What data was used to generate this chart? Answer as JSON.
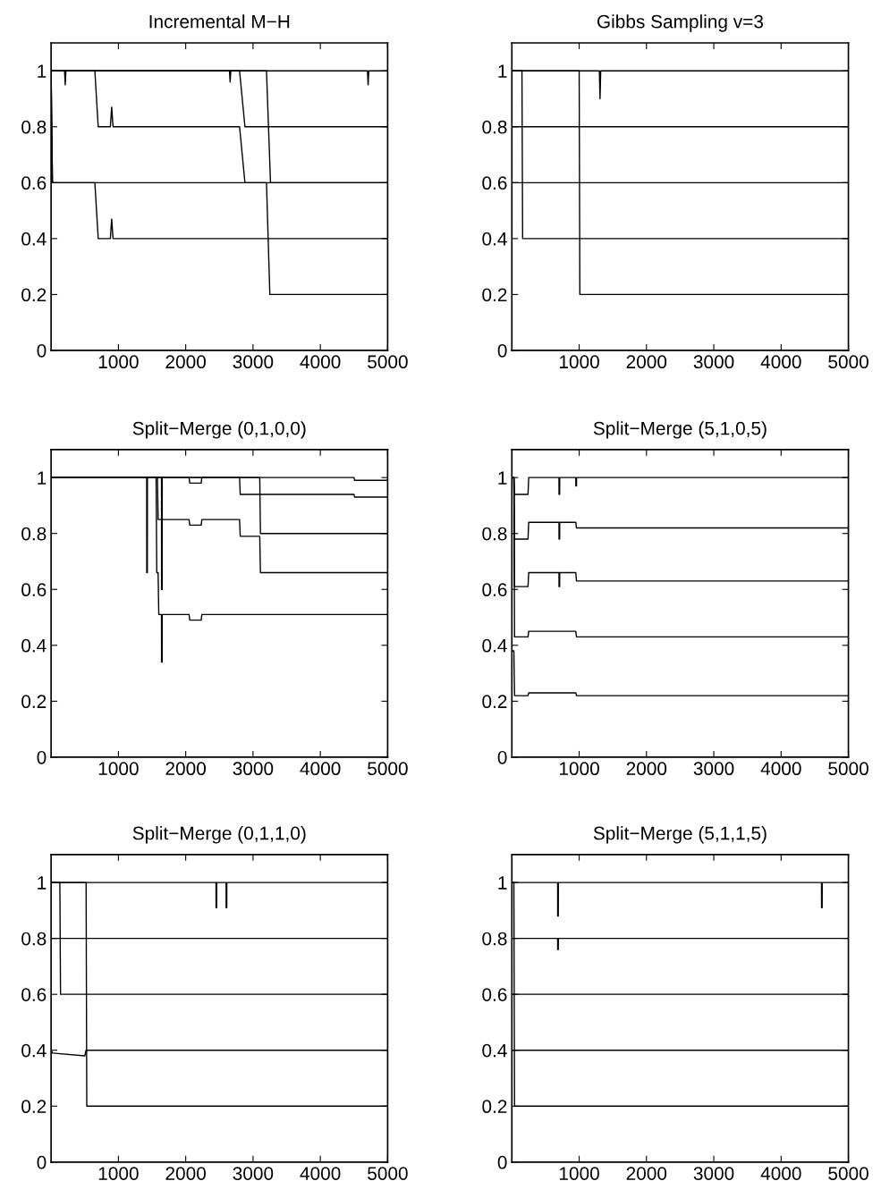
{
  "chart_data": [
    {
      "type": "line",
      "title": "Incremental M−H",
      "xlim": [
        0,
        5000
      ],
      "ylim": [
        0,
        1.1
      ],
      "xticks": [
        1000,
        2000,
        3000,
        4000,
        5000
      ],
      "yticks": [
        0,
        0.2,
        0.4,
        0.6,
        0.8,
        1
      ],
      "series": [
        {
          "color": "#000000",
          "x": [
            0,
            200,
            210,
            220,
            2650,
            2660,
            2670,
            4700,
            4710,
            4720,
            5000
          ],
          "values": [
            1,
            1,
            0.95,
            1,
            1,
            0.96,
            1,
            1,
            0.95,
            1,
            1
          ]
        },
        {
          "color": "#000000",
          "x": [
            0,
            650,
            700,
            880,
            900,
            920,
            2800,
            2880,
            5000
          ],
          "values": [
            1,
            1,
            0.8,
            0.8,
            0.87,
            0.8,
            0.8,
            0.6,
            0.6
          ]
        },
        {
          "color": "#000000",
          "x": [
            0,
            2800,
            2880,
            5000
          ],
          "values": [
            1,
            1,
            0.8,
            0.8
          ]
        },
        {
          "color": "#000000",
          "x": [
            0,
            20,
            650,
            700,
            880,
            900,
            920,
            5000
          ],
          "values": [
            1,
            0.6,
            0.6,
            0.4,
            0.4,
            0.47,
            0.4,
            0.4
          ]
        },
        {
          "color": "#000000",
          "x": [
            0,
            20,
            3200,
            3250,
            5000
          ],
          "values": [
            1,
            0.6,
            0.6,
            0.2,
            0.2
          ]
        },
        {
          "color": "#000000",
          "x": [
            0,
            3200,
            3260,
            5000
          ],
          "values": [
            1,
            1,
            0.6,
            0.6
          ]
        }
      ]
    },
    {
      "type": "line",
      "title": "Gibbs Sampling v=3",
      "xlim": [
        0,
        5000
      ],
      "ylim": [
        0,
        1.1
      ],
      "xticks": [
        1000,
        2000,
        3000,
        4000,
        5000
      ],
      "yticks": [
        0,
        0.2,
        0.4,
        0.6,
        0.8,
        1
      ],
      "series": [
        {
          "color": "#000000",
          "x": [
            0,
            1300,
            1310,
            1320,
            5000
          ],
          "values": [
            1,
            1,
            0.9,
            1,
            1
          ]
        },
        {
          "color": "#000000",
          "x": [
            0,
            5000
          ],
          "values": [
            0.8,
            0.8
          ]
        },
        {
          "color": "#000000",
          "x": [
            0,
            5000
          ],
          "values": [
            0.6,
            0.6
          ]
        },
        {
          "color": "#000000",
          "x": [
            0,
            150,
            160,
            5000
          ],
          "values": [
            1,
            1,
            0.4,
            0.4
          ]
        },
        {
          "color": "#000000",
          "x": [
            0,
            1000,
            1010,
            5000
          ],
          "values": [
            1,
            1,
            0.2,
            0.2
          ]
        }
      ]
    },
    {
      "type": "line",
      "title": "Split−Merge (0,1,0,0)",
      "xlim": [
        0,
        5000
      ],
      "ylim": [
        0,
        1.1
      ],
      "xticks": [
        1000,
        2000,
        3000,
        4000,
        5000
      ],
      "yticks": [
        0,
        0.2,
        0.4,
        0.6,
        0.8,
        1
      ],
      "series": [
        {
          "color": "#000000",
          "x": [
            0,
            2050,
            2060,
            2230,
            2240,
            4500,
            4510,
            5000
          ],
          "values": [
            1,
            1,
            0.98,
            0.98,
            1,
            1,
            0.99,
            0.99
          ]
        },
        {
          "color": "#000000",
          "x": [
            0,
            1640,
            1641,
            1650,
            1651,
            2800,
            2810,
            4500,
            4510,
            5000
          ],
          "values": [
            1,
            1,
            0.6,
            0.6,
            1,
            1,
            0.94,
            0.94,
            0.93,
            0.93
          ]
        },
        {
          "color": "#000000",
          "x": [
            0,
            1580,
            1590,
            2050,
            2060,
            2230,
            2240,
            2800,
            2810,
            3100,
            3110,
            5000
          ],
          "values": [
            1,
            1,
            0.85,
            0.85,
            0.83,
            0.83,
            0.85,
            0.85,
            0.79,
            0.79,
            0.66,
            0.66
          ]
        },
        {
          "color": "#000000",
          "x": [
            0,
            1420,
            1421,
            1430,
            1431,
            3100,
            3110,
            5000
          ],
          "values": [
            1,
            1,
            0.66,
            0.66,
            1,
            1,
            0.8,
            0.8
          ]
        },
        {
          "color": "#000000",
          "x": [
            0,
            1560,
            1570,
            1590,
            1600,
            1640,
            1641,
            1650,
            1651,
            2050,
            2060,
            2230,
            2240,
            5000
          ],
          "values": [
            1,
            1,
            0.66,
            0.66,
            0.51,
            0.51,
            0.34,
            0.34,
            0.51,
            0.51,
            0.49,
            0.49,
            0.51,
            0.51
          ]
        }
      ]
    },
    {
      "type": "line",
      "title": "Split−Merge (5,1,0,5)",
      "xlim": [
        0,
        5000
      ],
      "ylim": [
        0,
        1.1
      ],
      "xticks": [
        1000,
        2000,
        3000,
        4000,
        5000
      ],
      "yticks": [
        0,
        0.2,
        0.4,
        0.6,
        0.8,
        1
      ],
      "series": [
        {
          "color": "#000000",
          "x": [
            0,
            30,
            40,
            240,
            250,
            700,
            701,
            710,
            711,
            950,
            951,
            960,
            961,
            5000
          ],
          "values": [
            1,
            1,
            0.94,
            0.94,
            1,
            1,
            0.94,
            0.94,
            1,
            1,
            0.97,
            0.97,
            1,
            1
          ]
        },
        {
          "color": "#000000",
          "x": [
            0,
            30,
            40,
            240,
            250,
            700,
            701,
            710,
            711,
            950,
            960,
            5000
          ],
          "values": [
            1,
            1,
            0.78,
            0.78,
            0.84,
            0.84,
            0.78,
            0.78,
            0.84,
            0.84,
            0.82,
            0.82
          ]
        },
        {
          "color": "#000000",
          "x": [
            0,
            30,
            40,
            240,
            250,
            700,
            701,
            710,
            711,
            950,
            960,
            5000
          ],
          "values": [
            1,
            1,
            0.61,
            0.61,
            0.66,
            0.66,
            0.61,
            0.61,
            0.66,
            0.66,
            0.63,
            0.63
          ]
        },
        {
          "color": "#000000",
          "x": [
            0,
            30,
            40,
            240,
            250,
            950,
            960,
            5000
          ],
          "values": [
            1,
            1,
            0.43,
            0.43,
            0.45,
            0.45,
            0.43,
            0.43
          ]
        },
        {
          "color": "#000000",
          "x": [
            0,
            30,
            40,
            240,
            250,
            950,
            960,
            5000
          ],
          "values": [
            0.38,
            0.38,
            0.22,
            0.22,
            0.23,
            0.23,
            0.22,
            0.22
          ]
        }
      ]
    },
    {
      "type": "line",
      "title": "Split−Merge (0,1,1,0)",
      "xlim": [
        0,
        5000
      ],
      "ylim": [
        0,
        1.1
      ],
      "xticks": [
        1000,
        2000,
        3000,
        4000,
        5000
      ],
      "yticks": [
        0,
        0.2,
        0.4,
        0.6,
        0.8,
        1
      ],
      "series": [
        {
          "color": "#000000",
          "x": [
            0,
            2450,
            2451,
            2460,
            2461,
            2600,
            2601,
            2610,
            2611,
            5000
          ],
          "values": [
            1,
            1,
            0.91,
            0.91,
            1,
            1,
            0.91,
            0.91,
            1,
            1
          ]
        },
        {
          "color": "#000000",
          "x": [
            0,
            5000
          ],
          "values": [
            0.8,
            0.8
          ]
        },
        {
          "color": "#000000",
          "x": [
            0,
            130,
            140,
            5000
          ],
          "values": [
            1,
            1,
            0.6,
            0.6
          ]
        },
        {
          "color": "#000000",
          "x": [
            0,
            20,
            500,
            520,
            5000
          ],
          "values": [
            0.4,
            0.39,
            0.38,
            0.4,
            0.4
          ]
        },
        {
          "color": "#000000",
          "x": [
            0,
            520,
            530,
            5000
          ],
          "values": [
            1,
            1,
            0.2,
            0.2
          ]
        }
      ]
    },
    {
      "type": "line",
      "title": "Split−Merge (5,1,1,5)",
      "xlim": [
        0,
        5000
      ],
      "ylim": [
        0,
        1.1
      ],
      "xticks": [
        1000,
        2000,
        3000,
        4000,
        5000
      ],
      "yticks": [
        0,
        0.2,
        0.4,
        0.6,
        0.8,
        1
      ],
      "series": [
        {
          "color": "#000000",
          "x": [
            0,
            680,
            681,
            690,
            691,
            4600,
            4601,
            4610,
            4611,
            5000
          ],
          "values": [
            1,
            1,
            0.88,
            0.88,
            1,
            1,
            0.91,
            0.91,
            1,
            1
          ]
        },
        {
          "color": "#000000",
          "x": [
            0,
            680,
            681,
            690,
            691,
            5000
          ],
          "values": [
            0.8,
            0.8,
            0.76,
            0.76,
            0.8,
            0.8
          ]
        },
        {
          "color": "#000000",
          "x": [
            0,
            5000
          ],
          "values": [
            0.6,
            0.6
          ]
        },
        {
          "color": "#000000",
          "x": [
            0,
            5000
          ],
          "values": [
            0.4,
            0.4
          ]
        },
        {
          "color": "#000000",
          "x": [
            0,
            30,
            40,
            5000
          ],
          "values": [
            1,
            1,
            0.2,
            0.2
          ]
        }
      ]
    }
  ]
}
